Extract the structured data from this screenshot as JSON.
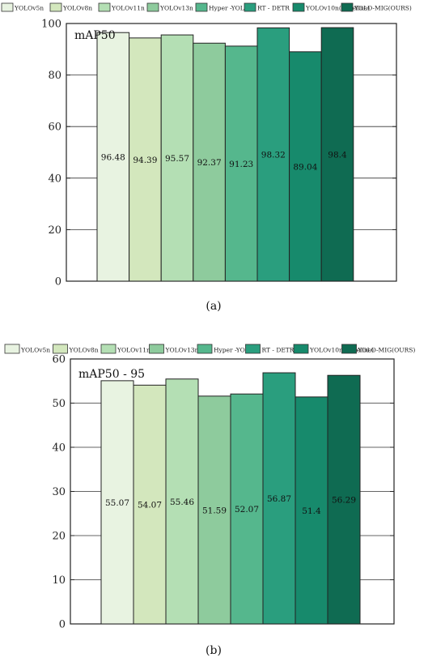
{
  "legend_labels": [
    "YOLOv5n",
    "YOLOv8n",
    "YOLOv11n",
    "YOLOv13n",
    "Hyper -YOLOn",
    "RT - DETR",
    "YOLOv10n(Baseline)",
    "YOLO-MIG(OURS)"
  ],
  "colors": [
    "#e8f3e1",
    "#d3e7bd",
    "#b4dfb4",
    "#8ecb9d",
    "#55b78d",
    "#2a9e7e",
    "#178a6c",
    "#0f6b52"
  ],
  "chart_data": [
    {
      "type": "bar",
      "title": "mAP50",
      "caption": "(a)",
      "categories": [
        "YOLOv5n",
        "YOLOv8n",
        "YOLOv11n",
        "YOLOv13n",
        "Hyper -YOLOn",
        "RT - DETR",
        "YOLOv10n(Baseline)",
        "YOLO-MIG(OURS)"
      ],
      "values": [
        96.48,
        94.39,
        95.57,
        92.37,
        91.23,
        98.32,
        89.04,
        98.4
      ],
      "value_labels": [
        "96.48",
        "94.39",
        "95.57",
        "92.37",
        "91.23",
        "98.32",
        "89.04",
        "98.4"
      ],
      "ylim": [
        0,
        100
      ],
      "yticks": [
        0,
        20,
        40,
        60,
        80,
        100
      ],
      "grid": "horizontal",
      "legend": "top"
    },
    {
      "type": "bar",
      "title": "mAP50 - 95",
      "caption": "(b)",
      "categories": [
        "YOLOv5n",
        "YOLOv8n",
        "YOLOv11n",
        "YOLOv13n",
        "Hyper -YOLOn",
        "RT - DETR",
        "YOLOv10n(Baseline)",
        "YOLO-MIG(OURS)"
      ],
      "values": [
        55.07,
        54.07,
        55.46,
        51.59,
        52.07,
        56.87,
        51.4,
        56.29
      ],
      "value_labels": [
        "55.07",
        "54.07",
        "55.46",
        "51.59",
        "52.07",
        "56.87",
        "51.4",
        "56.29"
      ],
      "ylim": [
        0,
        60
      ],
      "yticks": [
        0,
        10,
        20,
        30,
        40,
        50,
        60
      ],
      "grid": "horizontal",
      "legend": "top"
    }
  ]
}
